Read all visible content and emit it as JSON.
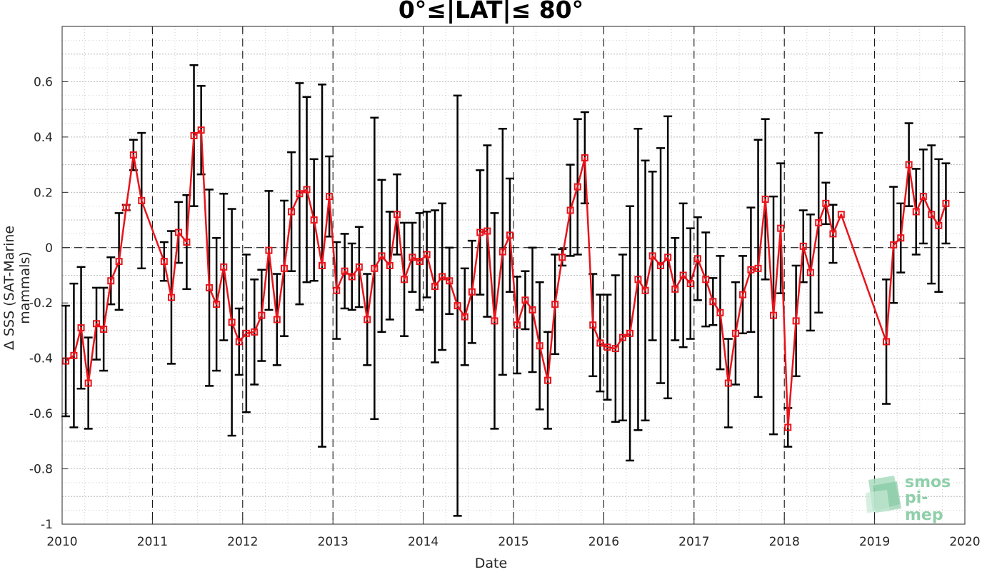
{
  "chart_data": {
    "type": "line",
    "title": "0°≤|LAT|≤ 80°",
    "xlabel": "Date",
    "ylabel": "Δ SSS (SAT-Marine mammals)",
    "xlim": [
      2010,
      2020
    ],
    "ylim": [
      -1,
      0.8
    ],
    "xticks": [
      "2010",
      "2011",
      "2012",
      "2013",
      "2014",
      "2015",
      "2016",
      "2017",
      "2018",
      "2019",
      "2020"
    ],
    "yticks": [
      "0.6",
      "0.4",
      "0.2",
      "0",
      "-0.2",
      "-0.4",
      "-0.6",
      "-0.8",
      "-1"
    ],
    "grid": true,
    "line_color": "#e8141b",
    "errorbar_color": "#000000",
    "series": [
      {
        "x": [
          2010.04,
          2010.13,
          2010.21,
          2010.29,
          2010.38,
          2010.46,
          2010.54,
          2010.63,
          2010.71,
          2010.79,
          2010.88,
          2011.13,
          2011.21,
          2011.29,
          2011.38,
          2011.46,
          2011.54,
          2011.63,
          2011.71,
          2011.79,
          2011.88,
          2011.96,
          2012.04,
          2012.13,
          2012.21,
          2012.29,
          2012.38,
          2012.46,
          2012.54,
          2012.63,
          2012.71,
          2012.79,
          2012.88,
          2012.96,
          2013.04,
          2013.13,
          2013.21,
          2013.29,
          2013.38,
          2013.46,
          2013.54,
          2013.63,
          2013.71,
          2013.79,
          2013.88,
          2013.96,
          2014.04,
          2014.13,
          2014.21,
          2014.29,
          2014.38,
          2014.46,
          2014.54,
          2014.63,
          2014.71,
          2014.79,
          2014.88,
          2014.96,
          2015.04,
          2015.13,
          2015.21,
          2015.29,
          2015.38,
          2015.46,
          2015.54,
          2015.63,
          2015.71,
          2015.79,
          2015.88,
          2015.96,
          2016.04,
          2016.13,
          2016.21,
          2016.29,
          2016.38,
          2016.46,
          2016.54,
          2016.63,
          2016.71,
          2016.79,
          2016.88,
          2016.96,
          2017.04,
          2017.13,
          2017.21,
          2017.29,
          2017.38,
          2017.46,
          2017.54,
          2017.63,
          2017.71,
          2017.79,
          2017.88,
          2017.96,
          2018.04,
          2018.13,
          2018.21,
          2018.29,
          2018.38,
          2018.46,
          2018.54,
          2018.63,
          2019.13,
          2019.21,
          2019.29,
          2019.38,
          2019.46,
          2019.54,
          2019.63,
          2019.71,
          2019.79
        ],
        "y": [
          -0.41,
          -0.39,
          -0.29,
          -0.49,
          -0.275,
          -0.295,
          -0.12,
          -0.05,
          0.145,
          0.335,
          0.17,
          -0.05,
          -0.18,
          0.055,
          0.02,
          0.405,
          0.425,
          -0.145,
          -0.205,
          -0.07,
          -0.27,
          -0.34,
          -0.31,
          -0.305,
          -0.245,
          -0.01,
          -0.26,
          -0.075,
          0.13,
          0.195,
          0.21,
          0.1,
          -0.065,
          0.185,
          -0.155,
          -0.085,
          -0.105,
          -0.07,
          -0.26,
          -0.075,
          -0.03,
          -0.065,
          0.12,
          -0.115,
          -0.035,
          -0.05,
          -0.025,
          -0.14,
          -0.105,
          -0.12,
          -0.21,
          -0.25,
          -0.16,
          0.055,
          0.06,
          -0.265,
          -0.015,
          0.045,
          -0.28,
          -0.19,
          -0.225,
          -0.355,
          -0.48,
          -0.205,
          -0.035,
          0.135,
          0.22,
          0.325,
          -0.28,
          -0.345,
          -0.36,
          -0.365,
          -0.325,
          -0.31,
          -0.115,
          -0.155,
          -0.03,
          -0.065,
          -0.035,
          -0.15,
          -0.1,
          -0.13,
          -0.04,
          -0.115,
          -0.195,
          -0.235,
          -0.49,
          -0.31,
          -0.17,
          -0.08,
          -0.075,
          0.175,
          -0.245,
          0.07,
          -0.65,
          -0.265,
          0.005,
          -0.09,
          0.09,
          0.16,
          0.05,
          0.12,
          -0.34,
          0.01,
          0.035,
          0.3,
          0.13,
          0.185,
          0.12,
          0.08,
          0.16
        ],
        "err": [
          0.2,
          0.26,
          0.22,
          0.165,
          0.13,
          0.15,
          0.085,
          0.175,
          0.01,
          0.055,
          0.245,
          0.07,
          0.24,
          0.11,
          0.17,
          0.255,
          0.16,
          0.355,
          0.24,
          0.265,
          0.41,
          0.12,
          0.285,
          0.19,
          0.165,
          0.215,
          0.165,
          0.245,
          0.215,
          0.4,
          0.335,
          0.22,
          0.655,
          0.145,
          0.175,
          0.135,
          0.12,
          0.145,
          0.165,
          0.545,
          0.275,
          0.195,
          0.145,
          0.205,
          0.125,
          0.175,
          0.155,
          0.275,
          0.265,
          0.12,
          0.76,
          0.175,
          0.185,
          0.225,
          0.31,
          0.39,
          0.445,
          0.205,
          0.175,
          0.105,
          0.225,
          0.23,
          0.175,
          0.18,
          0.03,
          0.165,
          0.245,
          0.165,
          0.185,
          0.175,
          0.19,
          0.265,
          0.3,
          0.46,
          0.545,
          0.47,
          0.305,
          0.425,
          0.51,
          0.185,
          0.26,
          0.2,
          0.15,
          0.17,
          0.085,
          0.205,
          0.16,
          0.185,
          0.14,
          0.225,
          0.465,
          0.29,
          0.43,
          0.235,
          0.07,
          0.2,
          0.13,
          0.21,
          0.325,
          0.075,
          0.105,
          0,
          0.225,
          0.21,
          0.125,
          0.15,
          0.155,
          0.17,
          0.25,
          0.24,
          0.145
        ]
      }
    ]
  },
  "logo": {
    "line1": "smos",
    "line2": "pi-mep"
  }
}
